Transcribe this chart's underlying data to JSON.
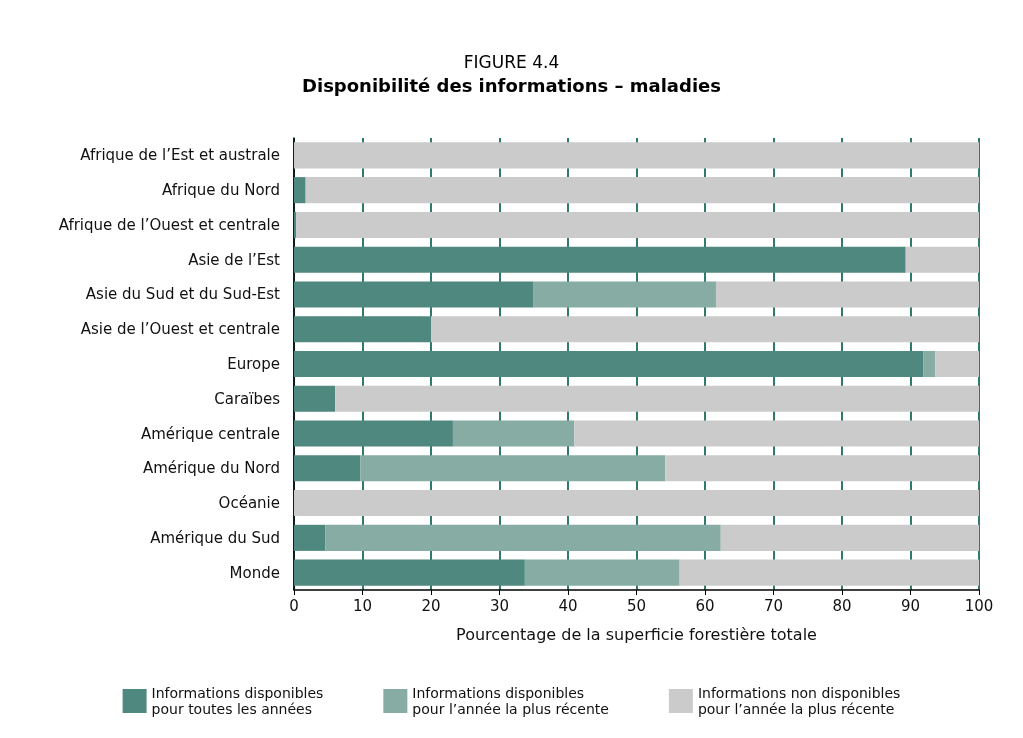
{
  "chart_data": {
    "type": "bar",
    "orientation": "horizontal",
    "stacked": true,
    "title": "FIGURE 4.4",
    "subtitle": "Disponibilité des informations – maladies",
    "xlabel": "Pourcentage de la superficie forestière totale",
    "categories": [
      "Afrique de l’Est et australe",
      "Afrique du Nord",
      "Afrique de l’Ouest et centrale",
      "Asie de l’Est",
      "Asie du Sud et du Sud-Est",
      "Asie de l’Ouest et centrale",
      "Europe",
      "Caraïbes",
      "Amérique centrale",
      "Amérique du Nord",
      "Océanie",
      "Amérique du Sud",
      "Monde"
    ],
    "series": [
      {
        "name": "Informations disponibles\npour toutes les années",
        "color": "#4e887e",
        "values": [
          null,
          1.7,
          0.3,
          89.3,
          34.9,
          20.0,
          91.9,
          6.0,
          23.2,
          9.7,
          null,
          4.6,
          33.7
        ]
      },
      {
        "name": "Informations disponibles\npour l’année la plus récente",
        "color": "#86aca4",
        "values": [
          0,
          0,
          0,
          0,
          26.7,
          0,
          1.7,
          0,
          17.7,
          44.5,
          0,
          57.7,
          22.6
        ]
      },
      {
        "name": "Informations non disponibles\npour l’année la plus récente",
        "color": "#cbcbcb",
        "values": [
          100,
          98.3,
          99.7,
          10.7,
          38.4,
          80.0,
          6.4,
          94.0,
          59.1,
          45.8,
          100,
          37.7,
          43.7
        ]
      }
    ],
    "xlim": [
      0,
      100
    ],
    "xticks": [
      0,
      10,
      20,
      30,
      40,
      50,
      60,
      70,
      80,
      90,
      100
    ],
    "grid": "x",
    "legend": "bottom"
  }
}
